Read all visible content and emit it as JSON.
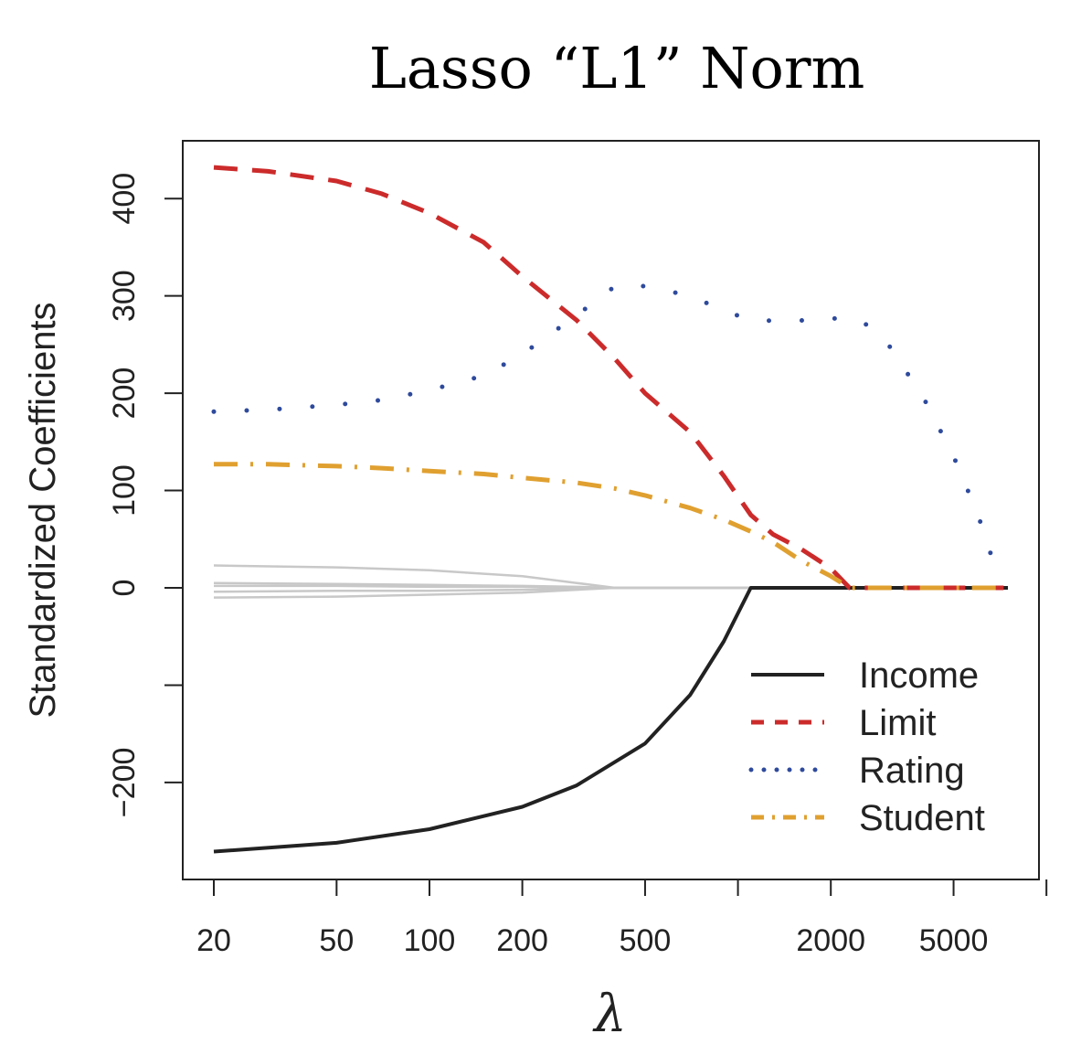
{
  "title": "Lasso “L1” Norm",
  "chart_data": {
    "type": "line",
    "title": "Lasso “L1” Norm",
    "xlabel": "λ",
    "ylabel": "Standardized Coefficients",
    "xscale": "log",
    "xlim": [
      20,
      7500
    ],
    "ylim": [
      -300,
      440
    ],
    "x_ticks": [
      20,
      50,
      100,
      200,
      500,
      1000,
      2000,
      5000,
      10000
    ],
    "x_tick_labels": [
      "20",
      "50",
      "100",
      "200",
      "500",
      "",
      "2000",
      "5000",
      ""
    ],
    "y_ticks": [
      -200,
      -100,
      0,
      100,
      200,
      300,
      400
    ],
    "y_tick_labels": [
      "−200",
      "",
      "0",
      "100",
      "200",
      "300",
      "400"
    ],
    "legend_position": "bottom-right",
    "series": [
      {
        "name": "Income",
        "color": "#222222",
        "style": "solid",
        "x": [
          20,
          50,
          100,
          200,
          300,
          500,
          700,
          900,
          1100,
          1500,
          2000,
          5000,
          7500
        ],
        "values": [
          -271,
          -262,
          -248,
          -225,
          -203,
          -160,
          -110,
          -55,
          0,
          0,
          0,
          0,
          0
        ]
      },
      {
        "name": "Limit",
        "color": "#cc2b2b",
        "style": "dashed",
        "x": [
          20,
          30,
          50,
          70,
          100,
          150,
          200,
          300,
          400,
          500,
          700,
          900,
          1100,
          1300,
          1600,
          2000,
          2300,
          5000,
          7500
        ],
        "values": [
          432,
          428,
          418,
          405,
          385,
          355,
          320,
          275,
          235,
          200,
          160,
          115,
          75,
          55,
          40,
          20,
          0,
          0,
          0
        ]
      },
      {
        "name": "Rating",
        "color": "#2e4a9c",
        "style": "dotted",
        "x": [
          20,
          30,
          50,
          70,
          100,
          150,
          200,
          300,
          400,
          500,
          700,
          900,
          1100,
          1500,
          2000,
          2500,
          3000,
          4000,
          5000,
          6000,
          7000
        ],
        "values": [
          181,
          183,
          188,
          193,
          203,
          218,
          240,
          280,
          310,
          310,
          300,
          285,
          275,
          274,
          277,
          275,
          255,
          195,
          135,
          75,
          10
        ]
      },
      {
        "name": "Student",
        "color": "#e0a030",
        "style": "dashdot",
        "x": [
          20,
          30,
          50,
          70,
          100,
          150,
          200,
          300,
          400,
          500,
          700,
          900,
          1100,
          1300,
          1600,
          2000,
          2300,
          5000,
          7500
        ],
        "values": [
          127,
          127,
          125,
          123,
          120,
          117,
          113,
          108,
          102,
          95,
          82,
          70,
          58,
          47,
          28,
          12,
          0,
          0,
          0
        ]
      },
      {
        "name": "",
        "color": "#c8c8c8",
        "style": "solid",
        "x": [
          20,
          50,
          100,
          200,
          300,
          400,
          500,
          1000,
          7500
        ],
        "values": [
          23,
          21,
          18,
          12,
          5,
          0,
          0,
          0,
          0
        ]
      },
      {
        "name": "",
        "color": "#c8c8c8",
        "style": "solid",
        "x": [
          20,
          50,
          100,
          200,
          300,
          400,
          500,
          1000,
          7500
        ],
        "values": [
          5,
          4,
          3,
          2,
          1,
          0,
          0,
          0,
          0
        ]
      },
      {
        "name": "",
        "color": "#c8c8c8",
        "style": "solid",
        "x": [
          20,
          50,
          100,
          200,
          300,
          400,
          500,
          1000,
          7500
        ],
        "values": [
          2,
          2,
          1,
          1,
          0,
          0,
          0,
          0,
          0
        ]
      },
      {
        "name": "",
        "color": "#c8c8c8",
        "style": "solid",
        "x": [
          20,
          50,
          100,
          200,
          300,
          400,
          500,
          1000,
          7500
        ],
        "values": [
          -4,
          -3,
          -3,
          -2,
          -1,
          0,
          0,
          0,
          0
        ]
      },
      {
        "name": "",
        "color": "#c8c8c8",
        "style": "solid",
        "x": [
          20,
          50,
          100,
          200,
          300,
          400,
          500,
          1000,
          7500
        ],
        "values": [
          -10,
          -9,
          -7,
          -5,
          -2,
          0,
          0,
          0,
          0
        ]
      }
    ]
  }
}
